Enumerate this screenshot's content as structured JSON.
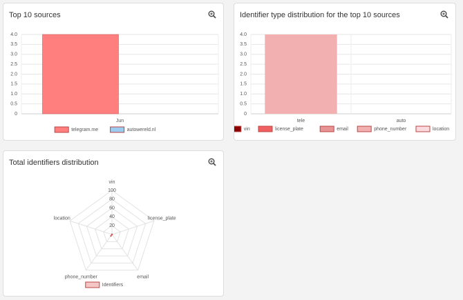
{
  "chart_data": [
    {
      "type": "bar",
      "title": "Top 10 sources",
      "categories": [
        "Jun"
      ],
      "series": [
        {
          "name": "telegram.me",
          "color": "#ff7f7f",
          "values": [
            4
          ]
        },
        {
          "name": "autowereld.nl",
          "color": "#9ccbf0",
          "values": [
            0
          ]
        }
      ],
      "ylim": [
        0,
        4
      ],
      "yticks": [
        0,
        0.5,
        {
          "value": 1,
          "label": "1.0"
        },
        1.5,
        {
          "value": 2,
          "label": "2.0"
        },
        2.5,
        {
          "value": 3,
          "label": "3.0"
        },
        3.5,
        {
          "value": 4,
          "label": "4.0"
        }
      ],
      "grid": true,
      "legend": "bottom"
    },
    {
      "type": "bar",
      "stacked": true,
      "title": "Identifier type distribution for the top 10 sources",
      "categories": [
        "tele",
        "auto"
      ],
      "series": [
        {
          "name": "vin",
          "color": "#8b0000",
          "values": [
            0,
            0
          ]
        },
        {
          "name": "license_plate",
          "color": "#f06060",
          "values": [
            0,
            0
          ]
        },
        {
          "name": "email",
          "color": "#e89494",
          "values": [
            0,
            0
          ]
        },
        {
          "name": "phone_number",
          "color": "#f2b0b0",
          "values": [
            4,
            0
          ]
        },
        {
          "name": "location",
          "color": "#fadadd",
          "values": [
            0,
            0
          ]
        }
      ],
      "ylim": [
        0,
        4
      ],
      "yticks": [
        0,
        0.5,
        {
          "value": 1,
          "label": "1.0"
        },
        1.5,
        {
          "value": 2,
          "label": "2.0"
        },
        2.5,
        {
          "value": 3,
          "label": "3.0"
        },
        3.5,
        {
          "value": 4,
          "label": "4.0"
        }
      ],
      "grid": true,
      "legend": "bottom"
    },
    {
      "type": "radar",
      "title": "Total identifiers distribution",
      "categories": [
        "vin",
        "license_plate",
        "email",
        "phone_number",
        "location"
      ],
      "series": [
        {
          "name": "Identifiers",
          "color": "#f4c6c6",
          "values": [
            0,
            0,
            0,
            4,
            0
          ]
        }
      ],
      "rlim": [
        0,
        100
      ],
      "rticks": [
        20,
        40,
        60,
        80,
        100
      ],
      "grid": true,
      "legend": "bottom"
    }
  ]
}
